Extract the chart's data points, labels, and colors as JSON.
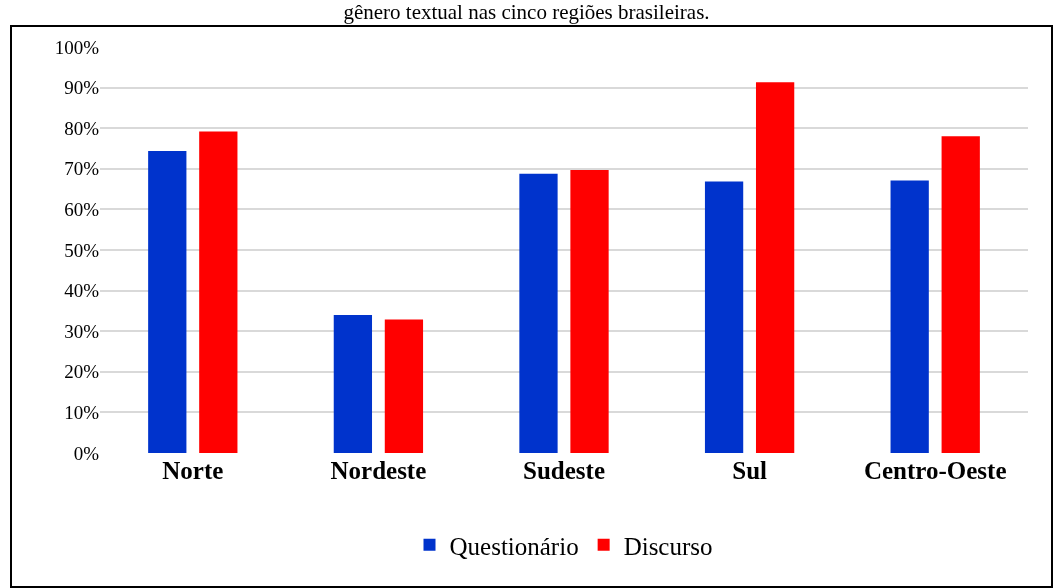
{
  "chart_data": {
    "type": "bar",
    "title": "gênero textual nas cinco regiões brasileiras.",
    "categories": [
      "Norte",
      "Nordeste",
      "Sudeste",
      "Sul",
      "Centro-Oeste"
    ],
    "series": [
      {
        "name": "Questionário",
        "color": "#0033cc",
        "values": [
          74.4,
          34,
          68.8,
          66.9,
          67.1
        ]
      },
      {
        "name": "Discurso",
        "color": "#ff0000",
        "values": [
          79.2,
          32.9,
          69.7,
          91.3,
          78
        ]
      }
    ],
    "ylim": [
      0,
      100
    ],
    "yticks": [
      {
        "value": 0,
        "label": "0%"
      },
      {
        "value": 10,
        "label": "10%"
      },
      {
        "value": 20,
        "label": "20%"
      },
      {
        "value": 30,
        "label": "30%"
      },
      {
        "value": 40,
        "label": "40%"
      },
      {
        "value": 50,
        "label": "50%"
      },
      {
        "value": 60,
        "label": "60%"
      },
      {
        "value": 70,
        "label": "70%"
      },
      {
        "value": 80,
        "label": "80%"
      },
      {
        "value": 90,
        "label": "90%"
      },
      {
        "value": 100,
        "label": "100%"
      }
    ],
    "grid": "y",
    "legend": "bottom"
  }
}
